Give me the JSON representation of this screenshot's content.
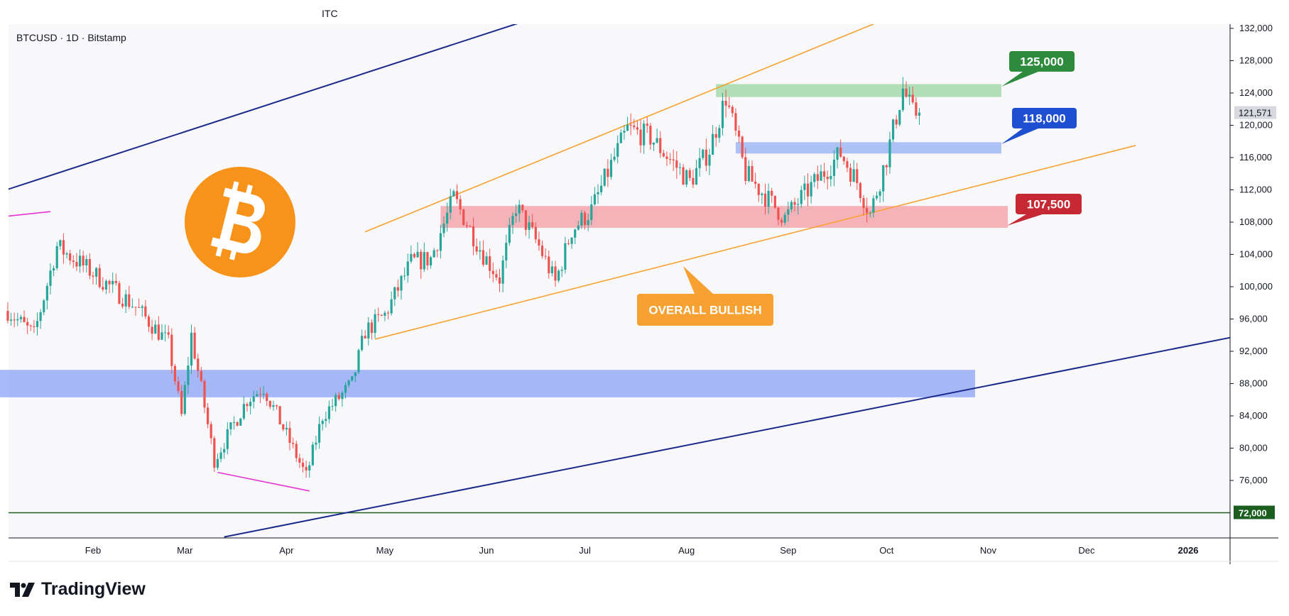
{
  "header": {
    "symbol": "BTCUSD · 1D · Bitstamp",
    "watermark": "ITC"
  },
  "brand": {
    "name": "TradingView",
    "icon": "tradingview-logo-icon"
  },
  "logo": {
    "icon": "bitcoin-logo-icon",
    "color": "#F7931A"
  },
  "colors": {
    "up": "#26a69a",
    "down": "#ef5350",
    "orange": "#f7a133",
    "navy": "#1a2a8c",
    "magenta": "#e632d2",
    "dark_green": "#1b5e20",
    "green_label": "#2e8b3e",
    "blue_label": "#1f4fd1",
    "red_label": "#c62834"
  },
  "chart_data": {
    "type": "candlestick",
    "title": "BTCUSD · 1D · Bitstamp",
    "ylim": [
      70000,
      134000
    ],
    "x_ticks": [
      "Feb",
      "Mar",
      "Apr",
      "May",
      "Jun",
      "Jul",
      "Aug",
      "Sep",
      "Oct",
      "Nov",
      "Dec",
      "2026"
    ],
    "y_ticks": [
      "132,000",
      "128,000",
      "124,000",
      "120,000",
      "116,000",
      "112,000",
      "108,000",
      "104,000",
      "100,000",
      "96,000",
      "92,000",
      "88,000",
      "84,000",
      "80,000",
      "76,000"
    ],
    "last_price": "121,571",
    "last_price_value": 121571,
    "level_72k": "72,000",
    "level_72k_value": 72000,
    "anchors": [
      [
        "2025-01-06",
        97000
      ],
      [
        "2025-01-14",
        94000
      ],
      [
        "2025-01-21",
        105000
      ],
      [
        "2025-01-31",
        102000
      ],
      [
        "2025-02-14",
        97500
      ],
      [
        "2025-02-24",
        93000
      ],
      [
        "2025-02-28",
        84000
      ],
      [
        "2025-03-03",
        94000
      ],
      [
        "2025-03-10",
        78500
      ],
      [
        "2025-03-20",
        86000
      ],
      [
        "2025-03-25",
        87500
      ],
      [
        "2025-03-31",
        82500
      ],
      [
        "2025-04-07",
        76500
      ],
      [
        "2025-04-12",
        84000
      ],
      [
        "2025-04-21",
        88000
      ],
      [
        "2025-04-25",
        94500
      ],
      [
        "2025-05-01",
        96500
      ],
      [
        "2025-05-09",
        103000
      ],
      [
        "2025-05-15",
        103500
      ],
      [
        "2025-05-22",
        111000
      ],
      [
        "2025-05-31",
        104000
      ],
      [
        "2025-06-05",
        101000
      ],
      [
        "2025-06-10",
        110000
      ],
      [
        "2025-06-17",
        105000
      ],
      [
        "2025-06-22",
        100500
      ],
      [
        "2025-06-27",
        107000
      ],
      [
        "2025-07-03",
        109500
      ],
      [
        "2025-07-10",
        116000
      ],
      [
        "2025-07-14",
        119500
      ],
      [
        "2025-07-21",
        118500
      ],
      [
        "2025-08-02",
        113000
      ],
      [
        "2025-08-08",
        117000
      ],
      [
        "2025-08-13",
        123500
      ],
      [
        "2025-08-19",
        114000
      ],
      [
        "2025-08-31",
        108500
      ],
      [
        "2025-09-05",
        111000
      ],
      [
        "2025-09-17",
        116500
      ],
      [
        "2025-09-22",
        113000
      ],
      [
        "2025-09-26",
        109000
      ],
      [
        "2025-10-01",
        116000
      ],
      [
        "2025-10-06",
        124500
      ],
      [
        "2025-10-09",
        121500
      ],
      [
        "2025-10-11",
        121571
      ]
    ],
    "zones": [
      {
        "name": "125k resistance zone",
        "from": "2025-08-10",
        "to": "2025-11-05",
        "low": 123500,
        "high": 125100,
        "color": "rgba(120,200,130,0.55)"
      },
      {
        "name": "118k support zone",
        "from": "2025-08-16",
        "to": "2025-11-05",
        "low": 116500,
        "high": 117900,
        "color": "rgba(110,150,240,0.55)"
      },
      {
        "name": "107.5k support zone",
        "from": "2025-05-18",
        "to": "2025-11-07",
        "low": 107300,
        "high": 110000,
        "color": "rgba(244,140,150,0.65)"
      },
      {
        "name": "88k support zone",
        "from": "2024-12-29",
        "to": "2025-10-28",
        "low": 86300,
        "high": 89700,
        "color": "rgba(110,140,245,0.6)"
      }
    ],
    "trendlines": [
      {
        "name": "orange channel upper",
        "color": "orange",
        "points": [
          [
            "2025-04-25",
            106800
          ],
          [
            "2025-10-04",
            133700
          ]
        ]
      },
      {
        "name": "orange channel lower",
        "color": "orange",
        "points": [
          [
            "2025-04-28",
            93500
          ],
          [
            "2025-12-16",
            117500
          ]
        ]
      },
      {
        "name": "navy channel upper",
        "color": "navy",
        "points": [
          [
            "2024-12-29",
            111000
          ],
          [
            "2025-06-21",
            134000
          ]
        ]
      },
      {
        "name": "navy channel lower",
        "color": "navy",
        "points": [
          [
            "2025-03-13",
            69000
          ],
          [
            "2026-01-30",
            95000
          ]
        ]
      },
      {
        "name": "magenta top",
        "color": "magenta",
        "points": [
          [
            "2024-12-29",
            108400
          ],
          [
            "2025-01-19",
            109300
          ]
        ]
      },
      {
        "name": "magenta bottom",
        "color": "magenta",
        "points": [
          [
            "2025-03-11",
            77000
          ],
          [
            "2025-04-08",
            74700
          ]
        ]
      }
    ],
    "callouts": [
      {
        "text": "125,000",
        "color": "green_label"
      },
      {
        "text": "118,000",
        "color": "blue_label"
      },
      {
        "text": "107,500",
        "color": "red_label"
      },
      {
        "text": "OVERALL BULLISH",
        "color": "orange"
      }
    ]
  }
}
